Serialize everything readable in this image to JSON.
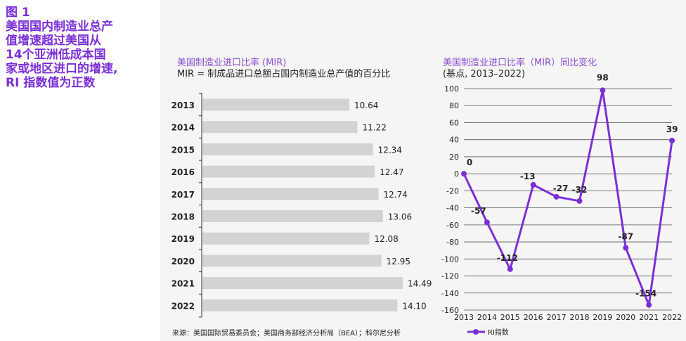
{
  "figure_title": "图 1\n美国国内制造业总产\n值增速超过美国从\n14个亚洲低成本国\n家或地区进口的增速,\nRI 指数值为正数",
  "source": "来源：美国国际贸易委员会；美国商务部经济分析局（BEA）；科尔尼分析",
  "colors": {
    "accent": "#7b2fd6",
    "bar": "#d3d3d3",
    "panel": "#f5f5f5"
  },
  "chart_data": [
    {
      "type": "bar",
      "orientation": "horizontal",
      "title": "美国制造业进口比率 (MIR)",
      "subtitle": "MIR = 制成品进口总额占国内制造业总产值的百分比",
      "categories": [
        "2013",
        "2014",
        "2015",
        "2016",
        "2017",
        "2018",
        "2019",
        "2020",
        "2021",
        "2022"
      ],
      "values": [
        10.64,
        11.22,
        12.34,
        12.47,
        12.74,
        13.06,
        12.08,
        12.95,
        14.49,
        14.1
      ],
      "labels": [
        "10.64",
        "11.22",
        "12.34",
        "12.47",
        "12.74",
        "13.06",
        "12.08",
        "12.95",
        "14.49",
        "14.10"
      ]
    },
    {
      "type": "line",
      "title": "美国制造业进口比率（MIR）同比变化",
      "subtitle": "(基点, 2013–2022)",
      "x": [
        "2013",
        "2014",
        "2015",
        "2016",
        "2017",
        "2018",
        "2019",
        "2020",
        "2021",
        "2022"
      ],
      "series": [
        {
          "name": "RI指数",
          "values": [
            0,
            -57,
            -112,
            -13,
            -27,
            -32,
            98,
            -87,
            -154,
            39
          ]
        }
      ],
      "ylim": [
        -160,
        100
      ],
      "yticks": [
        "100",
        "80",
        "60",
        "40",
        "20",
        "0",
        "-20",
        "-40",
        "-60",
        "-80",
        "-100",
        "-120",
        "-140",
        "-160"
      ],
      "grid": true,
      "legend": "bottom"
    }
  ]
}
